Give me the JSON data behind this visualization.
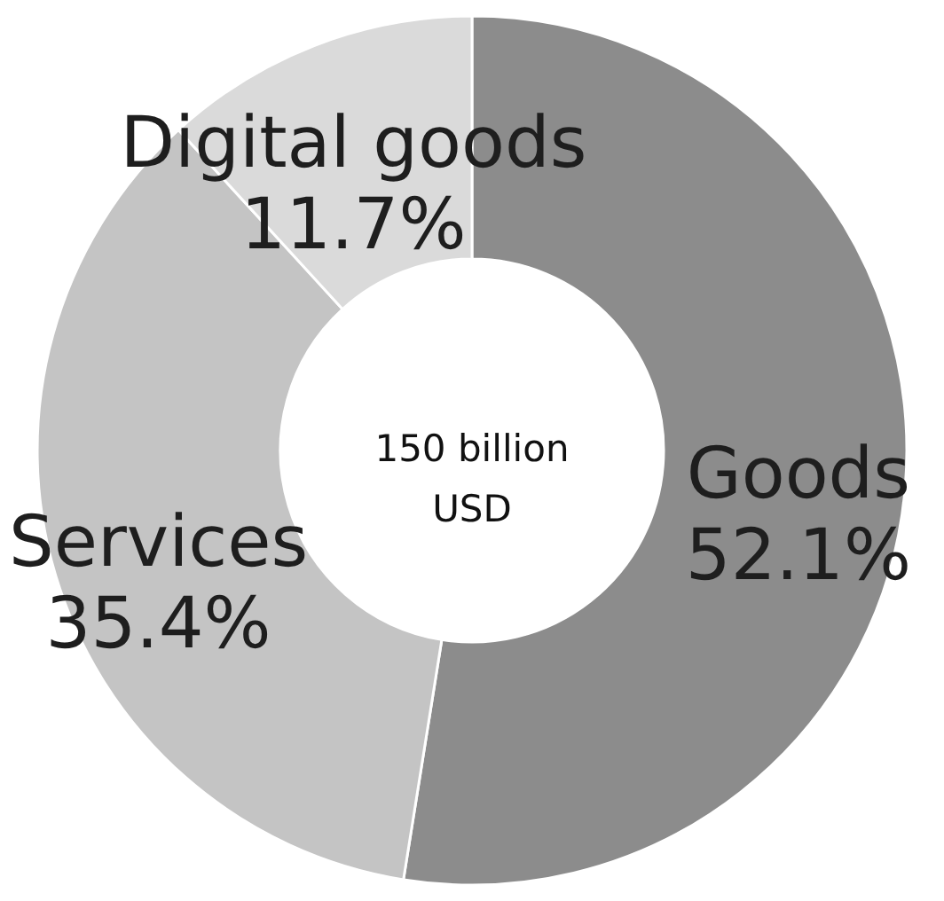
{
  "chart_data": {
    "type": "donut",
    "categories": [
      "Goods",
      "Services",
      "Digital goods"
    ],
    "values": [
      52.1,
      35.4,
      11.7
    ],
    "colors": [
      "#8c8c8c",
      "#c4c4c4",
      "#dadada"
    ],
    "value_labels": [
      "52.1%",
      "35.4%",
      "11.7%"
    ],
    "annotations": [
      "150 billion USD"
    ]
  }
}
